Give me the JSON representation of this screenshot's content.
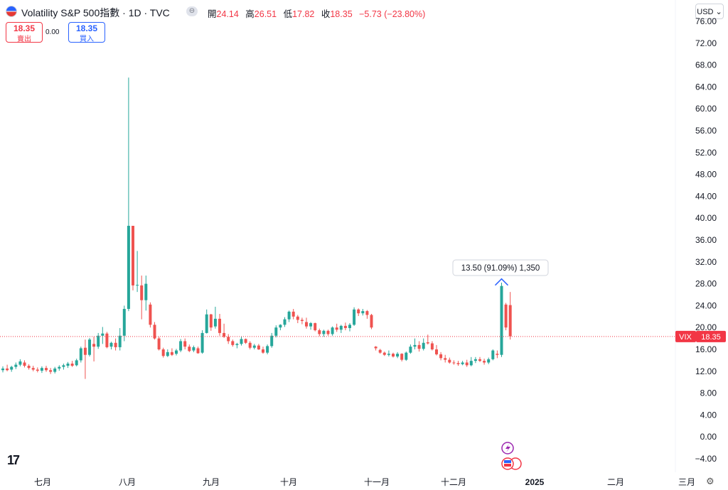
{
  "header": {
    "title": "Volatility S&P 500指數 · 1D · TVC",
    "ohlc": [
      {
        "label": "開",
        "value": "24.14"
      },
      {
        "label": "高",
        "value": "26.51"
      },
      {
        "label": "低",
        "value": "17.82"
      },
      {
        "label": "收",
        "value": "18.35"
      }
    ],
    "change": "−5.73 (−23.80%)",
    "currency": "USD ⌄",
    "more_icon": "⊖"
  },
  "trade": {
    "sell_price": "18.35",
    "sell_label": "賣出",
    "spread": "0.00",
    "buy_price": "18.35",
    "buy_label": "買入"
  },
  "chart_data": {
    "type": "candlestick",
    "symbol_label": "VIX",
    "last_price": "18.35",
    "ylim": [
      -6,
      76
    ],
    "yticks": [
      "−4.00",
      "0.00",
      "4.00",
      "8.00",
      "12.00",
      "16.00",
      "20.00",
      "24.00",
      "28.00",
      "32.00",
      "36.00",
      "40.00",
      "44.00",
      "48.00",
      "52.00",
      "56.00",
      "60.00",
      "64.00",
      "68.00",
      "72.00",
      "76.00"
    ],
    "xlabels": [
      "七月",
      "八月",
      "九月",
      "十月",
      "十一月",
      "十二月",
      "2025",
      "二月",
      "三月"
    ],
    "measure_label": "13.50 (91.09%) 1,350",
    "candles": [
      [
        12.2,
        12.9,
        11.8,
        12.5
      ],
      [
        12.5,
        13.2,
        12.0,
        12.2
      ],
      [
        12.3,
        13.0,
        11.9,
        12.8
      ],
      [
        12.8,
        13.6,
        12.4,
        13.2
      ],
      [
        13.2,
        14.2,
        12.9,
        13.8
      ],
      [
        13.6,
        14.0,
        12.7,
        13.0
      ],
      [
        13.0,
        13.3,
        12.3,
        12.6
      ],
      [
        12.6,
        13.0,
        12.0,
        12.3
      ],
      [
        12.3,
        12.7,
        11.8,
        12.1
      ],
      [
        12.1,
        12.9,
        11.7,
        12.6
      ],
      [
        12.6,
        13.0,
        11.9,
        12.2
      ],
      [
        12.2,
        12.6,
        11.5,
        11.9
      ],
      [
        11.9,
        12.8,
        11.6,
        12.5
      ],
      [
        12.5,
        13.1,
        12.1,
        12.8
      ],
      [
        12.8,
        13.4,
        12.3,
        13.1
      ],
      [
        13.0,
        13.7,
        12.6,
        13.4
      ],
      [
        13.4,
        13.9,
        12.8,
        13.0
      ],
      [
        13.1,
        14.3,
        12.9,
        14.0
      ],
      [
        14.0,
        16.5,
        13.6,
        16.2
      ],
      [
        16.3,
        17.8,
        10.6,
        15.0
      ],
      [
        15.0,
        18.1,
        14.7,
        17.8
      ],
      [
        17.0,
        18.3,
        13.8,
        16.5
      ],
      [
        16.5,
        19.0,
        16.1,
        18.5
      ],
      [
        18.5,
        20.1,
        17.0,
        18.9
      ],
      [
        18.9,
        19.2,
        16.2,
        16.4
      ],
      [
        16.5,
        17.4,
        16.0,
        17.2
      ],
      [
        17.2,
        18.0,
        15.8,
        16.4
      ],
      [
        16.4,
        19.9,
        15.8,
        18.5
      ],
      [
        18.5,
        24.0,
        17.5,
        23.4
      ],
      [
        23.4,
        65.7,
        23.0,
        38.6
      ],
      [
        38.6,
        38.6,
        26.8,
        27.7
      ],
      [
        27.7,
        34.0,
        26.5,
        27.8
      ],
      [
        27.7,
        29.5,
        21.5,
        25.0
      ],
      [
        25.0,
        29.5,
        23.1,
        28.0
      ],
      [
        24.2,
        24.6,
        20.0,
        20.5
      ],
      [
        20.5,
        21.0,
        17.8,
        18.0
      ],
      [
        18.0,
        18.3,
        15.8,
        16.0
      ],
      [
        16.0,
        16.3,
        14.5,
        14.8
      ],
      [
        14.8,
        16.0,
        14.6,
        15.5
      ],
      [
        15.5,
        16.2,
        14.8,
        15.0
      ],
      [
        15.2,
        16.1,
        14.9,
        15.8
      ],
      [
        15.8,
        17.9,
        15.5,
        17.5
      ],
      [
        17.5,
        18.0,
        16.0,
        16.5
      ],
      [
        16.5,
        16.9,
        15.5,
        15.7
      ],
      [
        15.8,
        16.7,
        15.5,
        16.4
      ],
      [
        16.2,
        16.5,
        15.2,
        15.3
      ],
      [
        15.4,
        19.5,
        15.2,
        19.0
      ],
      [
        19.0,
        23.3,
        18.9,
        22.4
      ],
      [
        22.4,
        22.5,
        19.4,
        20.0
      ],
      [
        20.2,
        23.8,
        19.8,
        21.6
      ],
      [
        21.6,
        22.5,
        18.5,
        19.0
      ],
      [
        19.0,
        20.7,
        18.1,
        18.3
      ],
      [
        18.3,
        18.8,
        17.0,
        17.5
      ],
      [
        17.5,
        17.8,
        16.5,
        16.8
      ],
      [
        16.8,
        17.2,
        16.2,
        17.0
      ],
      [
        17.0,
        18.4,
        16.7,
        17.9
      ],
      [
        17.9,
        18.0,
        17.0,
        17.2
      ],
      [
        17.2,
        17.5,
        16.0,
        16.3
      ],
      [
        16.3,
        17.0,
        16.0,
        16.7
      ],
      [
        16.7,
        17.0,
        15.9,
        16.0
      ],
      [
        16.0,
        16.5,
        15.2,
        15.4
      ],
      [
        15.4,
        16.9,
        15.1,
        16.6
      ],
      [
        16.6,
        19.0,
        16.3,
        18.5
      ],
      [
        18.5,
        20.4,
        18.2,
        20.0
      ],
      [
        20.0,
        20.6,
        19.5,
        20.5
      ],
      [
        20.5,
        21.9,
        20.1,
        21.5
      ],
      [
        21.5,
        23.1,
        21.0,
        22.9
      ],
      [
        22.9,
        23.4,
        21.5,
        22.0
      ],
      [
        22.0,
        22.3,
        20.8,
        21.4
      ],
      [
        21.4,
        21.8,
        20.6,
        21.2
      ],
      [
        21.0,
        21.8,
        19.8,
        20.2
      ],
      [
        20.2,
        21.0,
        19.6,
        20.8
      ],
      [
        20.8,
        20.9,
        19.3,
        19.5
      ],
      [
        19.5,
        19.8,
        18.4,
        18.8
      ],
      [
        18.8,
        19.6,
        18.3,
        19.4
      ],
      [
        19.4,
        19.6,
        18.5,
        18.8
      ],
      [
        18.8,
        20.2,
        18.5,
        20.0
      ],
      [
        20.0,
        20.7,
        19.2,
        19.6
      ],
      [
        19.6,
        20.5,
        19.0,
        20.3
      ],
      [
        20.3,
        20.9,
        19.5,
        19.9
      ],
      [
        19.9,
        20.8,
        19.3,
        20.5
      ],
      [
        20.5,
        23.7,
        20.3,
        23.3
      ],
      [
        23.3,
        23.5,
        22.1,
        22.6
      ],
      [
        22.6,
        23.4,
        22.2,
        23.0
      ],
      [
        23.0,
        23.2,
        21.6,
        22.3
      ],
      [
        22.3,
        22.5,
        19.7,
        20.0
      ],
      [
        16.5,
        16.6,
        15.8,
        16.2
      ],
      [
        15.9,
        16.1,
        15.2,
        15.4
      ],
      [
        15.4,
        15.6,
        14.8,
        15.0
      ],
      [
        15.0,
        15.8,
        14.7,
        15.2
      ],
      [
        15.2,
        15.4,
        14.5,
        14.7
      ],
      [
        14.7,
        15.5,
        14.4,
        15.2
      ],
      [
        15.2,
        15.3,
        13.8,
        14.1
      ],
      [
        14.1,
        15.6,
        13.9,
        15.4
      ],
      [
        15.4,
        16.9,
        15.2,
        16.5
      ],
      [
        16.5,
        18.0,
        16.0,
        16.8
      ],
      [
        16.8,
        17.5,
        15.6,
        16.1
      ],
      [
        16.1,
        18.0,
        15.8,
        17.2
      ],
      [
        17.3,
        18.7,
        16.9,
        17.1
      ],
      [
        17.1,
        17.5,
        15.8,
        16.0
      ],
      [
        16.0,
        16.8,
        14.9,
        15.1
      ],
      [
        15.1,
        15.5,
        14.0,
        14.4
      ],
      [
        14.4,
        15.0,
        13.6,
        14.1
      ],
      [
        14.1,
        14.5,
        13.4,
        13.6
      ],
      [
        13.6,
        14.0,
        13.2,
        13.5
      ],
      [
        13.5,
        13.9,
        13.0,
        13.3
      ],
      [
        13.3,
        13.9,
        13.1,
        13.6
      ],
      [
        13.6,
        14.1,
        12.8,
        13.1
      ],
      [
        13.1,
        14.6,
        12.9,
        13.9
      ],
      [
        13.9,
        14.6,
        13.5,
        14.2
      ],
      [
        14.2,
        14.6,
        13.7,
        13.9
      ],
      [
        13.9,
        14.3,
        13.2,
        13.6
      ],
      [
        13.6,
        14.5,
        13.3,
        14.2
      ],
      [
        14.2,
        16.0,
        14.0,
        15.8
      ],
      [
        15.2,
        15.8,
        14.4,
        15.0
      ],
      [
        15.0,
        28.2,
        14.6,
        27.6
      ],
      [
        24.2,
        24.5,
        19.5,
        20.0
      ],
      [
        24.1,
        26.5,
        17.8,
        18.4
      ]
    ]
  }
}
